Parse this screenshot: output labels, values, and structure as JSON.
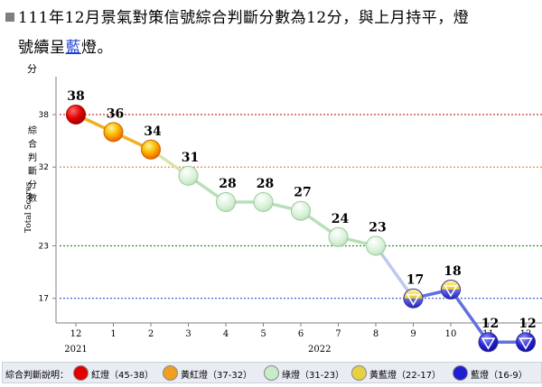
{
  "headline": {
    "line1": "111年12月景氣對策信號綜合判斷分數為12分，與上月持平，燈",
    "line2_prefix": "號續呈",
    "line2_highlight": "藍",
    "line2_suffix": "燈。"
  },
  "chart_data": {
    "type": "line",
    "ylabel_top": "分",
    "ylabel_cn": "綜合判斷分數",
    "ylabel_en": "Total Scores",
    "categories": [
      "12",
      "1",
      "2",
      "3",
      "4",
      "5",
      "6",
      "7",
      "8",
      "9",
      "10",
      "11",
      "12"
    ],
    "year_labels": [
      {
        "label": "2021",
        "at_index": 0
      },
      {
        "label": "2022",
        "at_index": 6.5
      }
    ],
    "values": [
      38,
      36,
      34,
      31,
      28,
      28,
      27,
      24,
      23,
      17,
      18,
      12,
      12
    ],
    "signals": [
      "red",
      "yellow-red",
      "yellow-red",
      "green",
      "green",
      "green",
      "green",
      "green",
      "green",
      "yellow-blue",
      "yellow-blue",
      "blue",
      "blue"
    ],
    "yticks": [
      17,
      23,
      32,
      38
    ],
    "ylim": [
      9,
      44
    ],
    "thresholds": [
      {
        "value": 38,
        "color": "#c0392b"
      },
      {
        "value": 32,
        "color": "#e67e22"
      },
      {
        "value": 23,
        "color": "#2e8b2e"
      },
      {
        "value": 17,
        "color": "#2e4fd0"
      }
    ]
  },
  "legend": {
    "title": "綜合判斷說明：",
    "items": [
      {
        "label": "紅燈（45-38）",
        "color": "#e00000"
      },
      {
        "label": "黃紅燈（37-32）",
        "color": "#f0a020"
      },
      {
        "label": "綠燈（31-23）",
        "color": "#c8ebc8"
      },
      {
        "label": "黃藍燈（22-17）",
        "color": "#e8d040"
      },
      {
        "label": "藍燈（16-9）",
        "color": "#1f1fd0"
      }
    ]
  },
  "colors": {
    "red": "#e00000",
    "yellow": "#f5c400",
    "orange": "#f07800",
    "green_fill": "#d4efd4",
    "green_stroke": "#9ac89a",
    "blue": "#1818c8",
    "blue_light": "#8c8cf0",
    "line_red_orange": "#f0b020",
    "line_green": "#b8e0b8",
    "line_blue": "#6070e0",
    "axis": "#7f7f7f"
  }
}
